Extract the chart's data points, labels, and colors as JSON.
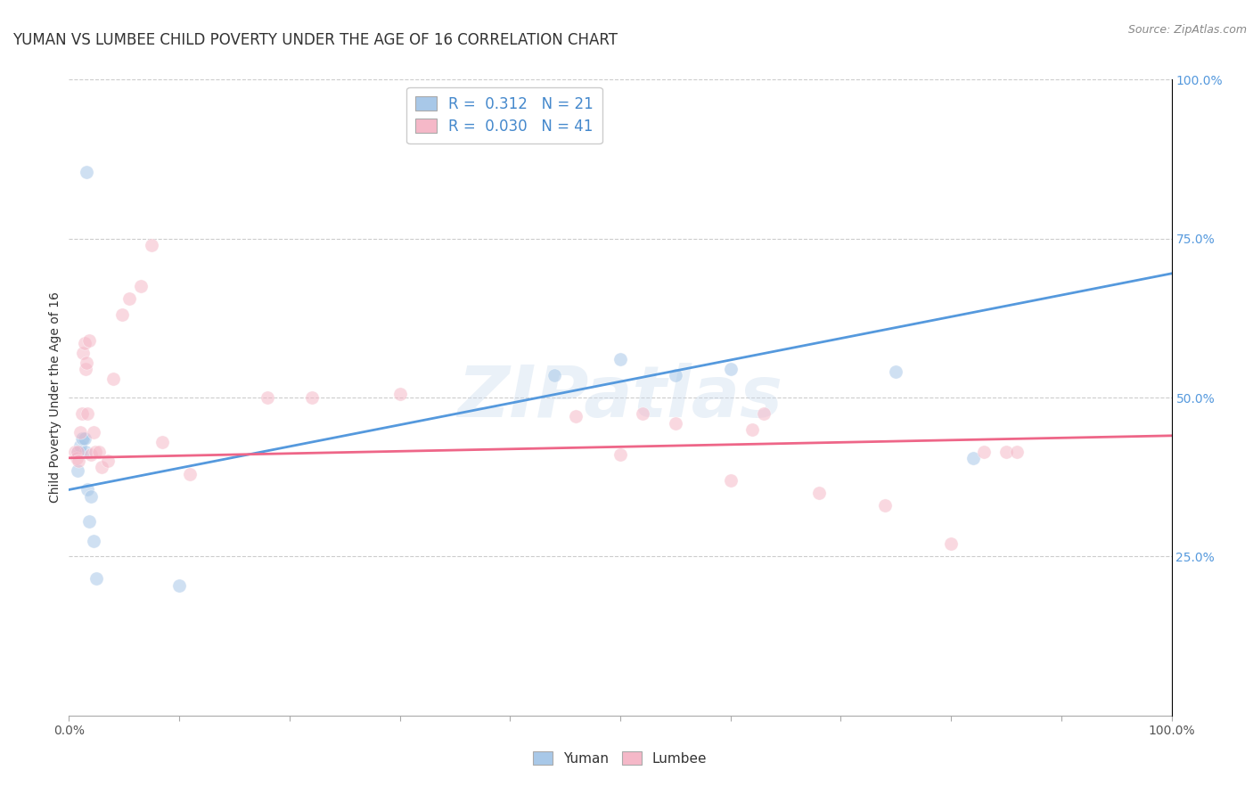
{
  "title": "YUMAN VS LUMBEE CHILD POVERTY UNDER THE AGE OF 16 CORRELATION CHART",
  "source": "Source: ZipAtlas.com",
  "ylabel": "Child Poverty Under the Age of 16",
  "xlim": [
    0.0,
    1.0
  ],
  "ylim": [
    0.0,
    1.0
  ],
  "ytick_labels_right": [
    "100.0%",
    "75.0%",
    "50.0%",
    "25.0%"
  ],
  "ytick_positions_right": [
    1.0,
    0.75,
    0.5,
    0.25
  ],
  "watermark": "ZIPatlas",
  "yuman_color": "#a8c8e8",
  "lumbee_color": "#f5b8c8",
  "yuman_line_color": "#5599dd",
  "lumbee_line_color": "#ee6688",
  "legend_text_color": "#4488cc",
  "yuman_R": "0.312",
  "yuman_N": "21",
  "lumbee_R": "0.030",
  "lumbee_N": "41",
  "yuman_scatter_x": [
    0.008,
    0.008,
    0.01,
    0.01,
    0.012,
    0.013,
    0.014,
    0.015,
    0.016,
    0.017,
    0.018,
    0.02,
    0.022,
    0.025,
    0.1,
    0.44,
    0.5,
    0.55,
    0.6,
    0.75,
    0.82
  ],
  "yuman_scatter_y": [
    0.385,
    0.415,
    0.415,
    0.425,
    0.435,
    0.435,
    0.435,
    0.415,
    0.855,
    0.355,
    0.305,
    0.345,
    0.275,
    0.215,
    0.205,
    0.535,
    0.56,
    0.535,
    0.545,
    0.54,
    0.405
  ],
  "lumbee_scatter_x": [
    0.005,
    0.007,
    0.008,
    0.009,
    0.01,
    0.012,
    0.013,
    0.014,
    0.015,
    0.016,
    0.017,
    0.018,
    0.02,
    0.022,
    0.024,
    0.027,
    0.03,
    0.035,
    0.04,
    0.048,
    0.055,
    0.065,
    0.075,
    0.085,
    0.11,
    0.18,
    0.22,
    0.3,
    0.46,
    0.5,
    0.52,
    0.55,
    0.6,
    0.62,
    0.63,
    0.68,
    0.74,
    0.8,
    0.83,
    0.85,
    0.86
  ],
  "lumbee_scatter_y": [
    0.415,
    0.405,
    0.415,
    0.4,
    0.445,
    0.475,
    0.57,
    0.585,
    0.545,
    0.555,
    0.475,
    0.59,
    0.41,
    0.445,
    0.415,
    0.415,
    0.39,
    0.4,
    0.53,
    0.63,
    0.655,
    0.675,
    0.74,
    0.43,
    0.38,
    0.5,
    0.5,
    0.505,
    0.47,
    0.41,
    0.475,
    0.46,
    0.37,
    0.45,
    0.475,
    0.35,
    0.33,
    0.27,
    0.415,
    0.415,
    0.415
  ],
  "yuman_line_x": [
    0.0,
    1.0
  ],
  "yuman_line_y": [
    0.355,
    0.695
  ],
  "lumbee_line_x": [
    0.0,
    1.0
  ],
  "lumbee_line_y": [
    0.405,
    0.44
  ],
  "background_color": "#ffffff",
  "grid_color": "#cccccc",
  "title_fontsize": 12,
  "label_fontsize": 10,
  "tick_fontsize": 10,
  "scatter_size": 120,
  "scatter_alpha": 0.55
}
